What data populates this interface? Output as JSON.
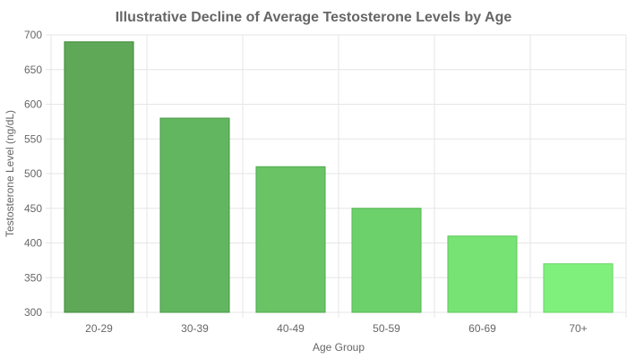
{
  "chart_data": {
    "type": "bar",
    "title": "Illustrative Decline of Average Testosterone Levels by Age",
    "xlabel": "Age Group",
    "ylabel": "Testosterone Level (ng/dL)",
    "categories": [
      "20-29",
      "30-39",
      "40-49",
      "50-59",
      "60-69",
      "70+"
    ],
    "values": [
      690,
      580,
      510,
      450,
      410,
      370
    ],
    "ylim": [
      300,
      700
    ],
    "yticks": [
      300,
      350,
      400,
      450,
      500,
      550,
      600,
      650,
      700
    ],
    "grid": true,
    "legend": "none",
    "colors": {
      "bars": [
        "#5ea857",
        "#63b660",
        "#6ac466",
        "#6dd16b",
        "#77e374",
        "#80f07d"
      ],
      "bar_borders": [
        "#3f8a38",
        "#489a44",
        "#4fa84c",
        "#57b654",
        "#5ec85b",
        "#66d462"
      ],
      "text": "#666666",
      "grid": "#e6e6e6"
    }
  }
}
